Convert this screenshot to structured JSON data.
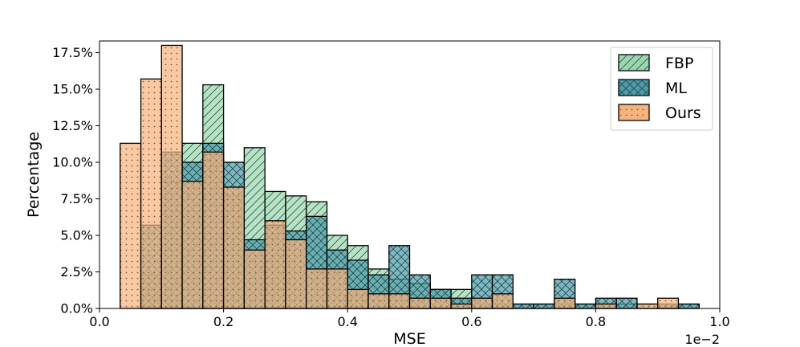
{
  "chart_data": {
    "type": "histogram",
    "xlabel": "MSE",
    "ylabel": "Percentage",
    "x_offset_label": "1e−2",
    "xlim": [
      0.0,
      1.0
    ],
    "ylim": [
      0.0,
      18.3
    ],
    "xticks": [
      0.0,
      0.2,
      0.4,
      0.6,
      0.8,
      1.0
    ],
    "xtick_labels": [
      "0.0",
      "0.2",
      "0.4",
      "0.6",
      "0.8",
      "1.0"
    ],
    "yticks": [
      0.0,
      2.5,
      5.0,
      7.5,
      10.0,
      12.5,
      15.0,
      17.5
    ],
    "ytick_labels": [
      "0.0%",
      "2.5%",
      "5.0%",
      "7.5%",
      "10.0%",
      "12.5%",
      "15.0%",
      "17.5%"
    ],
    "bin_edges": [
      0.0333,
      0.0667,
      0.1,
      0.1333,
      0.1667,
      0.2,
      0.2333,
      0.2667,
      0.3,
      0.3333,
      0.3667,
      0.4,
      0.4333,
      0.4667,
      0.5,
      0.5333,
      0.5667,
      0.6,
      0.6333,
      0.6667,
      0.7,
      0.7333,
      0.7667,
      0.8,
      0.8333,
      0.8667,
      0.9,
      0.9333,
      0.9667
    ],
    "legend_position": "top-right",
    "series": [
      {
        "name": "FBP",
        "color": "#9dd5b0",
        "hatch": "diagonal",
        "values": [
          0,
          2.3,
          8.7,
          11.3,
          15.3,
          7.7,
          11.0,
          8.0,
          7.7,
          7.3,
          5.0,
          4.3,
          2.7,
          2.0,
          1.7,
          1.3,
          1.3,
          0.3,
          0.3,
          0.3,
          0.3,
          0.3,
          0.3,
          0.3,
          0.3,
          0.3,
          0.3,
          0.3
        ]
      },
      {
        "name": "ML",
        "color": "#4f9aa6",
        "hatch": "crosshatch",
        "values": [
          0,
          5.7,
          10.7,
          10.0,
          11.3,
          10.0,
          4.7,
          5.7,
          5.3,
          6.3,
          4.0,
          3.3,
          2.3,
          4.3,
          2.3,
          1.3,
          0.7,
          2.3,
          2.3,
          0.3,
          0.3,
          2.0,
          0.3,
          0.7,
          0.7,
          0,
          0.3,
          0.3
        ]
      },
      {
        "name": "Ours",
        "color": "#f5b47e",
        "hatch": "dots",
        "values": [
          11.3,
          15.7,
          18.0,
          8.7,
          10.7,
          8.3,
          4.0,
          6.0,
          4.7,
          2.7,
          2.7,
          1.3,
          1.0,
          1.0,
          0.7,
          0.7,
          0.3,
          0.7,
          1.0,
          0,
          0,
          0.7,
          0,
          0.3,
          0,
          0.3,
          0.7,
          0
        ]
      }
    ]
  }
}
